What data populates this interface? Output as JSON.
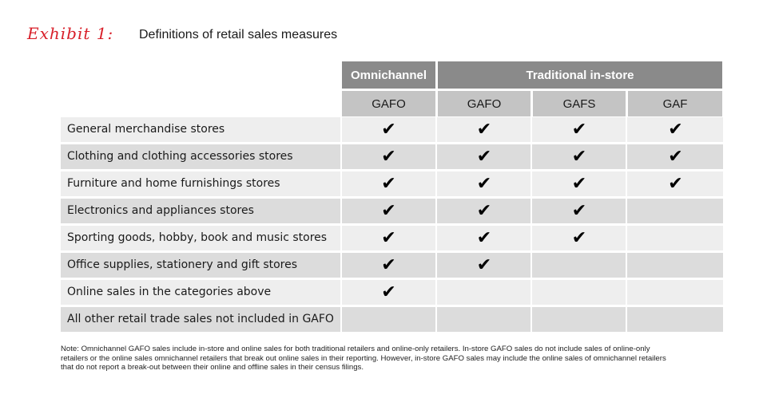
{
  "exhibit": {
    "label": "Exhibit 1:",
    "title": "Definitions of retail sales measures",
    "accent_color": "#d8202a"
  },
  "table": {
    "groups": [
      {
        "label": "Omnichannel"
      },
      {
        "label": "Traditional in-store"
      }
    ],
    "columns": [
      "GAFO",
      "GAFO",
      "GAFS",
      "GAF"
    ],
    "check_glyph": "✔",
    "rows": [
      {
        "label": "General merchandise stores",
        "checks": [
          true,
          true,
          true,
          true
        ]
      },
      {
        "label": "Clothing and clothing accessories stores",
        "checks": [
          true,
          true,
          true,
          true
        ]
      },
      {
        "label": "Furniture and home furnishings stores",
        "checks": [
          true,
          true,
          true,
          true
        ]
      },
      {
        "label": "Electronics and appliances stores",
        "checks": [
          true,
          true,
          true,
          false
        ]
      },
      {
        "label": "Sporting goods, hobby, book and music stores",
        "checks": [
          true,
          true,
          true,
          false
        ]
      },
      {
        "label": "Office supplies, stationery and gift stores",
        "checks": [
          true,
          true,
          false,
          false
        ]
      },
      {
        "label": "Online sales in the categories above",
        "checks": [
          true,
          false,
          false,
          false
        ]
      },
      {
        "label": "All other retail trade sales not included in GAFO",
        "checks": [
          false,
          false,
          false,
          false
        ]
      }
    ]
  },
  "note": "Note: Omnichannel GAFO sales include in-store and online sales for both traditional retailers and online-only retailers. In-store GAFO sales do not include sales of online-only retailers or the online sales omnichannel retailers that break out online sales in their reporting. However, in-store GAFO sales may include the online sales of omnichannel retailers that do not report a break-out between their online and offline sales in their census filings."
}
